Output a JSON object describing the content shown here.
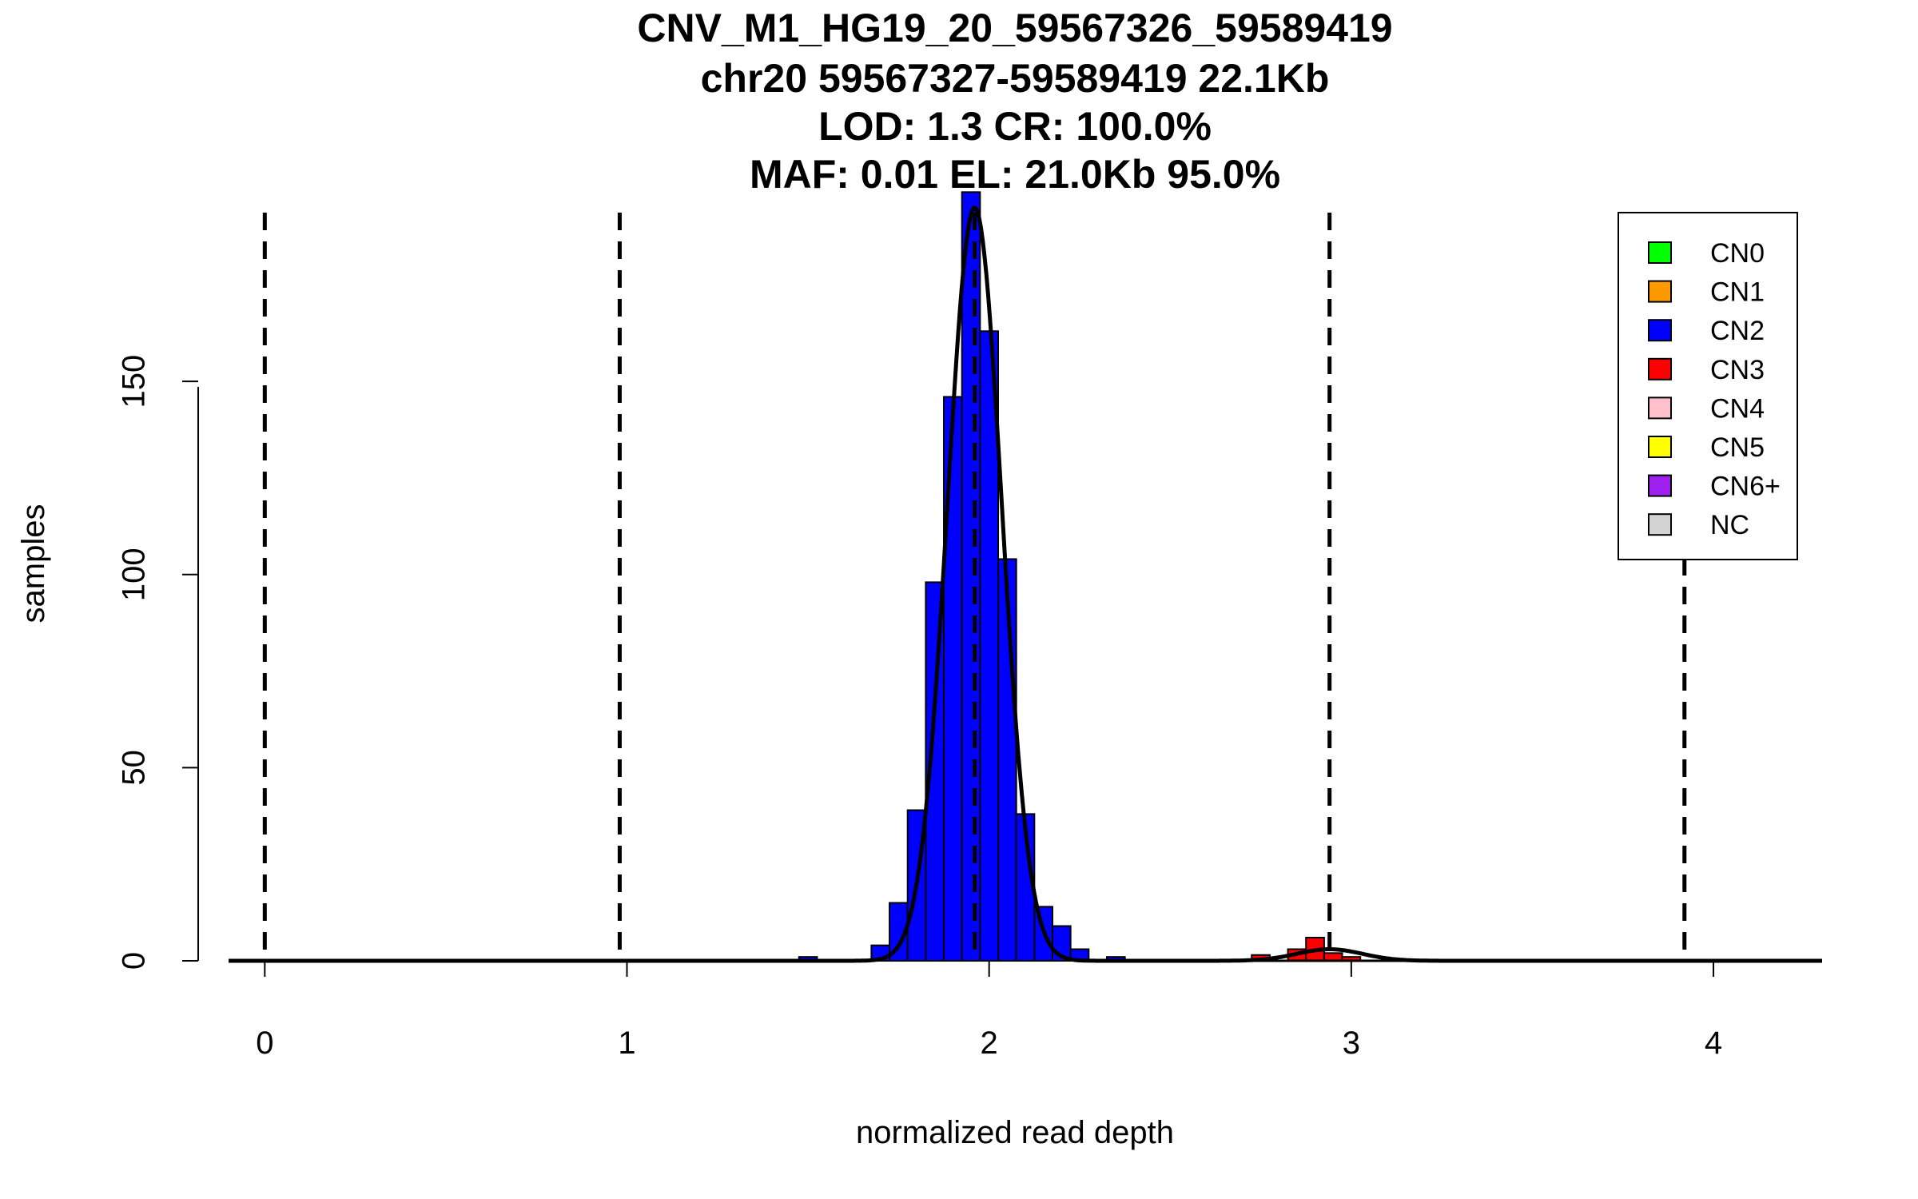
{
  "chart_data": {
    "type": "bar",
    "title_lines": [
      "CNV_M1_HG19_20_59567326_59589419",
      "chr20 59567327-59589419 22.1Kb",
      "LOD: 1.3 CR: 100.0%",
      "MAF: 0.01 EL: 21.0Kb 95.0%"
    ],
    "xlabel": "normalized read depth",
    "ylabel": "samples",
    "xlim": [
      -0.1,
      4.3
    ],
    "ylim": [
      0,
      197
    ],
    "x_ticks": [
      0,
      1,
      2,
      3,
      4
    ],
    "x_tick_labels": [
      "0",
      "1",
      "2",
      "3",
      "4"
    ],
    "y_ticks": [
      0,
      50,
      100,
      150
    ],
    "y_tick_labels": [
      "0",
      "50",
      "100",
      "150"
    ],
    "bin_width": 0.05,
    "series": [
      {
        "name": "CN2",
        "color": "#0000ff",
        "bins": [
          {
            "x0": 1.475,
            "x1": 1.525,
            "count": 1
          },
          {
            "x0": 1.675,
            "x1": 1.725,
            "count": 4
          },
          {
            "x0": 1.725,
            "x1": 1.775,
            "count": 15
          },
          {
            "x0": 1.775,
            "x1": 1.825,
            "count": 39
          },
          {
            "x0": 1.825,
            "x1": 1.875,
            "count": 98
          },
          {
            "x0": 1.875,
            "x1": 1.925,
            "count": 146
          },
          {
            "x0": 1.925,
            "x1": 1.975,
            "count": 199
          },
          {
            "x0": 1.975,
            "x1": 2.025,
            "count": 163
          },
          {
            "x0": 2.025,
            "x1": 2.075,
            "count": 104
          },
          {
            "x0": 2.075,
            "x1": 2.125,
            "count": 38
          },
          {
            "x0": 2.125,
            "x1": 2.175,
            "count": 14
          },
          {
            "x0": 2.175,
            "x1": 2.225,
            "count": 9
          },
          {
            "x0": 2.225,
            "x1": 2.275,
            "count": 3
          },
          {
            "x0": 2.325,
            "x1": 2.375,
            "count": 1
          }
        ]
      },
      {
        "name": "CN3",
        "color": "#ff0000",
        "bins": [
          {
            "x0": 2.725,
            "x1": 2.775,
            "count": 1.5
          },
          {
            "x0": 2.825,
            "x1": 2.875,
            "count": 3
          },
          {
            "x0": 2.875,
            "x1": 2.925,
            "count": 6
          },
          {
            "x0": 2.925,
            "x1": 2.975,
            "count": 2
          },
          {
            "x0": 2.975,
            "x1": 3.025,
            "count": 1
          }
        ]
      }
    ],
    "fit_curves": [
      {
        "mean": 1.96,
        "sd": 0.075,
        "peak": 195
      },
      {
        "mean": 2.94,
        "sd": 0.09,
        "peak": 3
      }
    ],
    "cn_lines": [
      0.0,
      0.98,
      1.96,
      2.94,
      3.92
    ],
    "legend": {
      "placement": "top-right",
      "entries": [
        {
          "label": "CN0",
          "color": "#00ff00"
        },
        {
          "label": "CN1",
          "color": "#ff9900"
        },
        {
          "label": "CN2",
          "color": "#0000ff"
        },
        {
          "label": "CN3",
          "color": "#ff0000"
        },
        {
          "label": "CN4",
          "color": "#ffc0cb"
        },
        {
          "label": "CN5",
          "color": "#ffff00"
        },
        {
          "label": "CN6+",
          "color": "#a020f0"
        },
        {
          "label": "NC",
          "color": "#d3d3d3"
        }
      ]
    }
  }
}
